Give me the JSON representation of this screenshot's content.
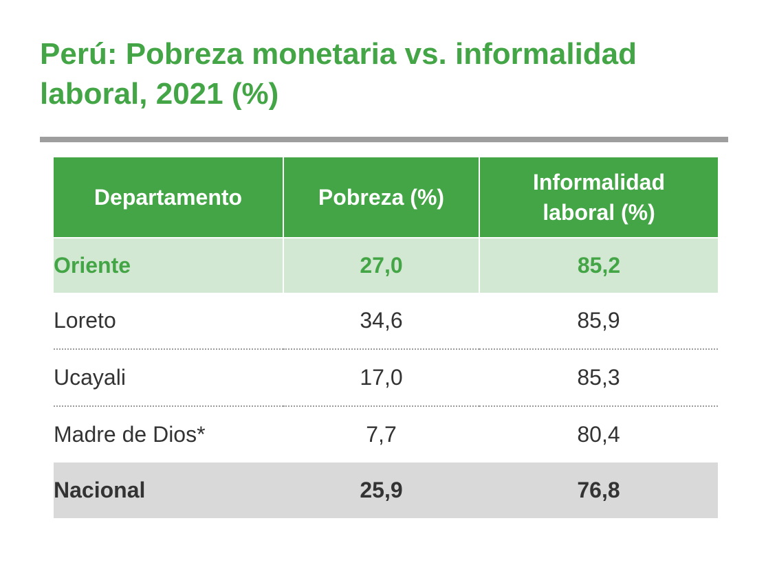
{
  "title": "Perú: Pobreza monetaria vs. informalidad laboral, 2021 (%)",
  "colors": {
    "accent": "#43a546",
    "highlight_row": "#d3e8d2",
    "total_row": "#d9d9d9"
  },
  "chart_data": {
    "type": "table",
    "title": "Perú: Pobreza monetaria vs. informalidad laboral, 2021 (%)",
    "columns": [
      "Departamento",
      "Pobreza (%)",
      "Informalidad laboral (%)"
    ],
    "rows": [
      [
        "Oriente",
        "27,0",
        "85,2"
      ],
      [
        "Loreto",
        "34,6",
        "85,9"
      ],
      [
        "Ucayali",
        "17,0",
        "85,3"
      ],
      [
        "Madre de Dios*",
        "7,7",
        "80,4"
      ],
      [
        "Nacional",
        "25,9",
        "76,8"
      ]
    ]
  }
}
